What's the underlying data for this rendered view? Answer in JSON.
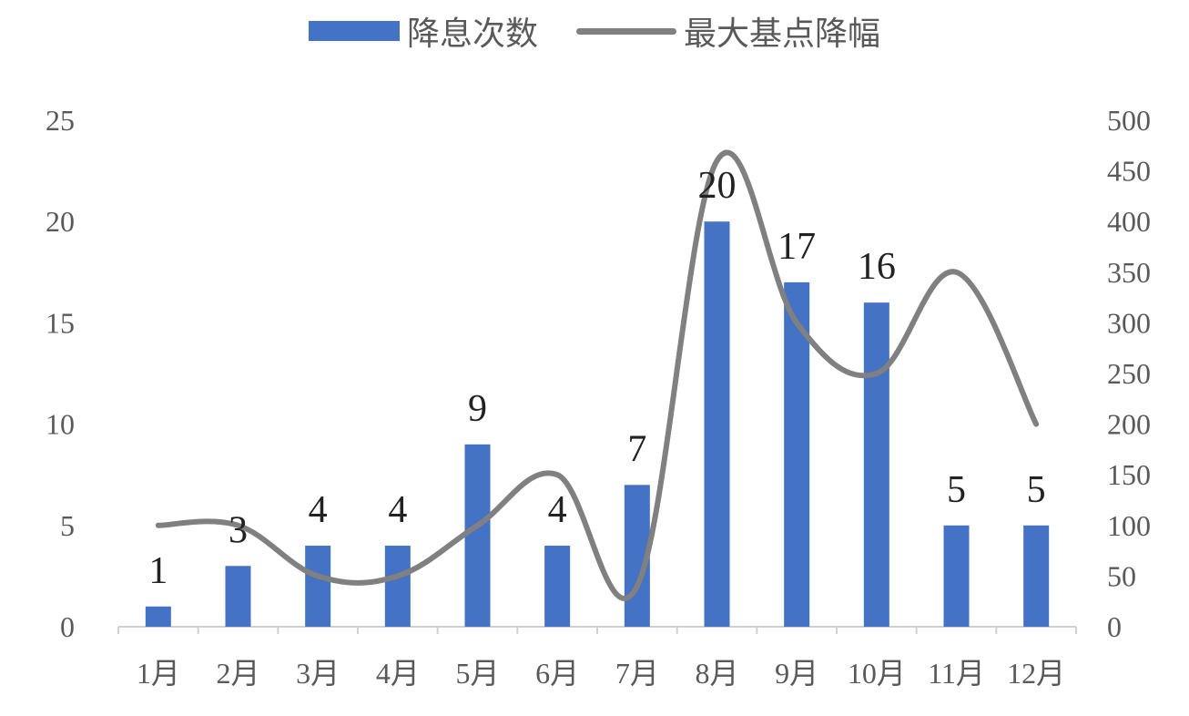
{
  "legend": {
    "bars_label": "降息次数",
    "line_label": "最大基点降幅"
  },
  "chart_data": {
    "type": "bar",
    "categories": [
      "1月",
      "2月",
      "3月",
      "4月",
      "5月",
      "6月",
      "7月",
      "8月",
      "9月",
      "10月",
      "11月",
      "12月"
    ],
    "series": [
      {
        "name": "降息次数",
        "type": "bar",
        "axis": "left",
        "color": "#4472C4",
        "values": [
          1,
          3,
          4,
          4,
          9,
          4,
          7,
          20,
          17,
          16,
          5,
          5
        ]
      },
      {
        "name": "最大基点降幅",
        "type": "line",
        "axis": "right",
        "color": "#808080",
        "values": [
          100,
          100,
          50,
          50,
          100,
          150,
          40,
          460,
          300,
          250,
          350,
          200
        ]
      }
    ],
    "y_left": {
      "min": 0,
      "max": 25,
      "ticks": [
        0,
        5,
        10,
        15,
        20,
        25
      ]
    },
    "y_right": {
      "min": 0,
      "max": 500,
      "ticks": [
        0,
        50,
        100,
        150,
        200,
        250,
        300,
        350,
        400,
        450,
        500
      ]
    },
    "data_labels": [
      "1",
      "3",
      "4",
      "4",
      "9",
      "4",
      "7",
      "20",
      "17",
      "16",
      "5",
      "5"
    ],
    "legend_position": "top-center",
    "grid": false
  }
}
